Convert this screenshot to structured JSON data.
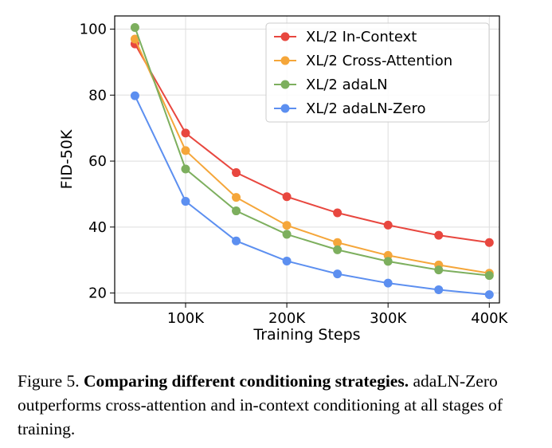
{
  "chart_data": {
    "type": "line",
    "title": "",
    "xlabel": "Training Steps",
    "ylabel": "FID-50K",
    "x": [
      50000,
      100000,
      150000,
      200000,
      250000,
      300000,
      350000,
      400000
    ],
    "xlim": [
      30000,
      410000
    ],
    "ylim": [
      17,
      104
    ],
    "xticks": [
      100000,
      200000,
      300000,
      400000
    ],
    "xtick_labels": [
      "100K",
      "200K",
      "300K",
      "400K"
    ],
    "yticks": [
      20,
      40,
      60,
      80,
      100
    ],
    "ytick_labels": [
      "20",
      "40",
      "60",
      "80",
      "100"
    ],
    "grid": true,
    "legend_position": "top-right",
    "series": [
      {
        "name": "XL/2 In-Context",
        "color": "#e8473f",
        "values": [
          95.5,
          68.5,
          56.5,
          49.2,
          44.3,
          40.6,
          37.5,
          35.3
        ]
      },
      {
        "name": "XL/2 Cross-Attention",
        "color": "#f5a63a",
        "values": [
          97.0,
          63.2,
          49.0,
          40.5,
          35.3,
          31.4,
          28.5,
          26.0
        ]
      },
      {
        "name": "XL/2 adaLN",
        "color": "#7daf5e",
        "values": [
          100.5,
          57.6,
          44.9,
          37.8,
          33.1,
          29.6,
          27.0,
          25.3
        ]
      },
      {
        "name": "XL/2 adaLN-Zero",
        "color": "#5c8ff0",
        "values": [
          79.8,
          47.8,
          35.8,
          29.7,
          25.8,
          23.0,
          21.0,
          19.5
        ]
      }
    ]
  },
  "caption": {
    "prefix": "Figure 5.",
    "bold": "Comparing different conditioning strategies.",
    "rest": "adaLN-Zero outperforms cross-attention and in-context conditioning at all stages of training."
  }
}
